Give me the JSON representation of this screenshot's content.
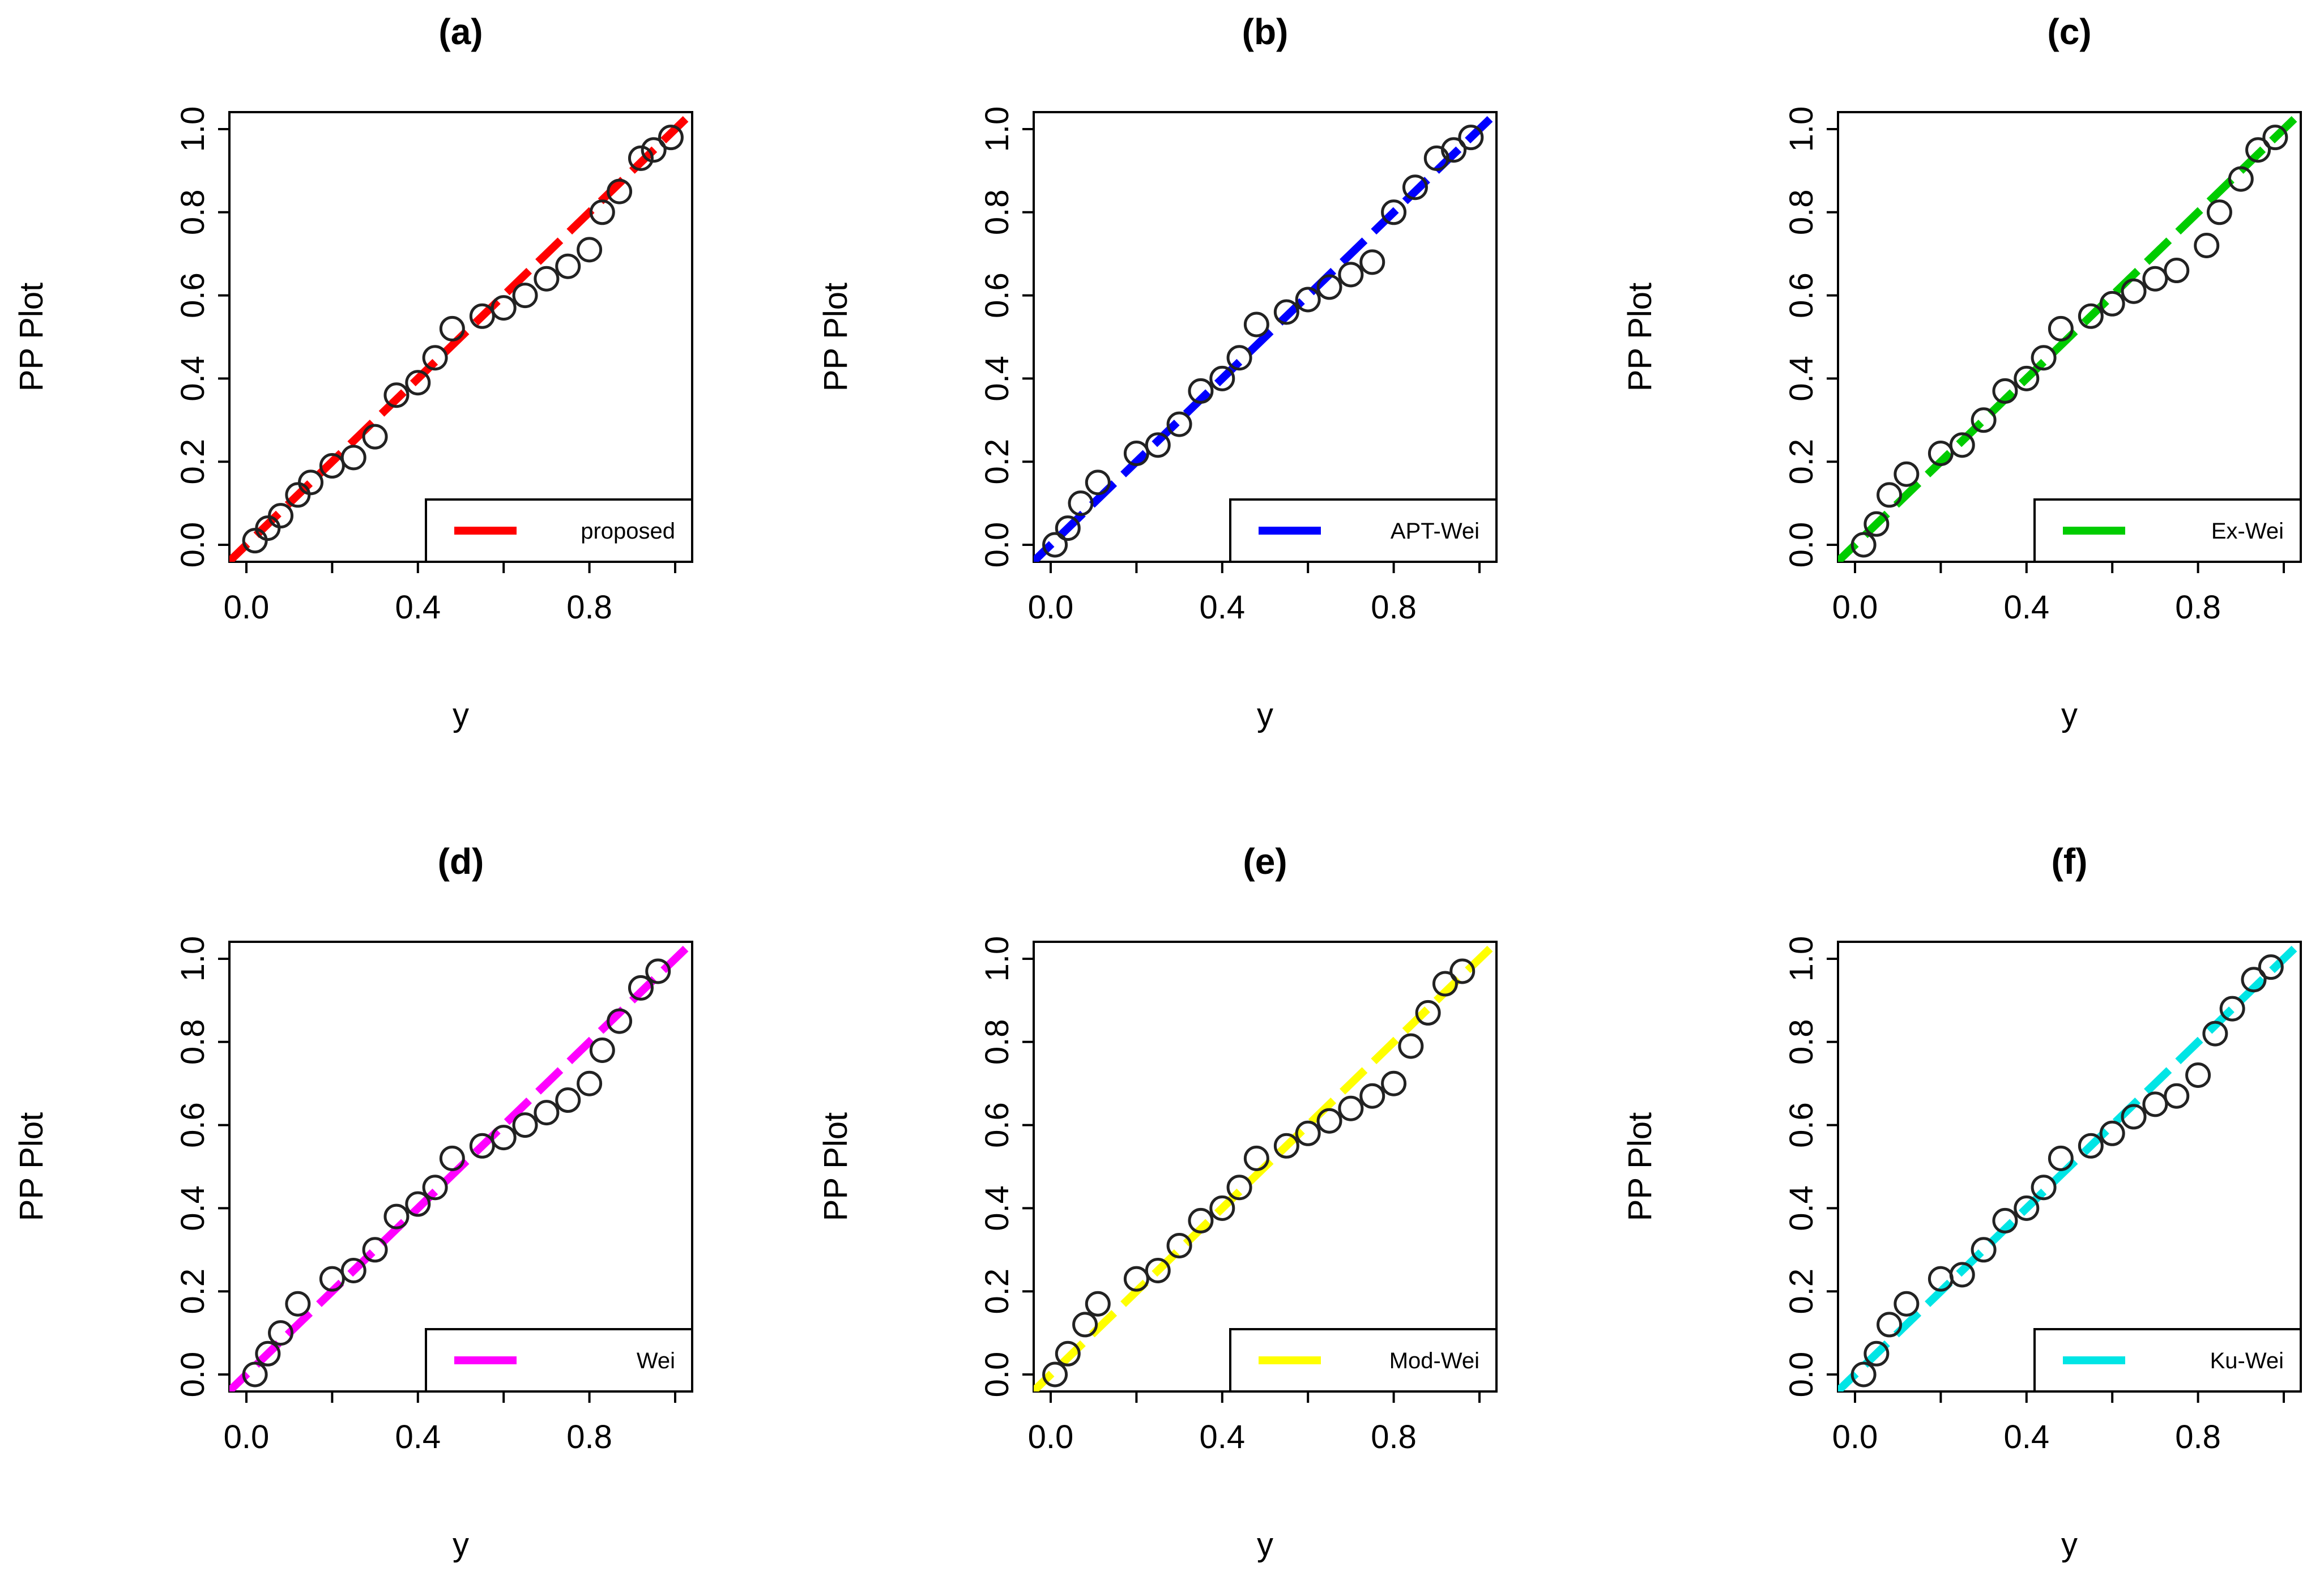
{
  "chart_data": [
    {
      "panel": "(a)",
      "type": "scatter",
      "title": "(a)",
      "xlabel": "y",
      "ylabel": "PP Plot",
      "xlim": [
        0,
        1
      ],
      "ylim": [
        0,
        1
      ],
      "x_ticks": [
        "0.0",
        "0.4",
        "0.8"
      ],
      "y_ticks": [
        "0.0",
        "0.2",
        "0.4",
        "0.6",
        "0.8",
        "1.0"
      ],
      "legend": {
        "label": "proposed",
        "color": "#ff0000",
        "position": "bottom-right"
      },
      "reference_line": {
        "from": [
          0,
          0
        ],
        "to": [
          1,
          1
        ],
        "style": "dashed",
        "color": "#ff0000"
      },
      "points": [
        [
          0.02,
          0.01
        ],
        [
          0.05,
          0.04
        ],
        [
          0.08,
          0.07
        ],
        [
          0.12,
          0.12
        ],
        [
          0.15,
          0.15
        ],
        [
          0.2,
          0.19
        ],
        [
          0.25,
          0.21
        ],
        [
          0.3,
          0.26
        ],
        [
          0.35,
          0.36
        ],
        [
          0.4,
          0.39
        ],
        [
          0.44,
          0.45
        ],
        [
          0.48,
          0.52
        ],
        [
          0.55,
          0.55
        ],
        [
          0.6,
          0.57
        ],
        [
          0.65,
          0.6
        ],
        [
          0.7,
          0.64
        ],
        [
          0.75,
          0.67
        ],
        [
          0.8,
          0.71
        ],
        [
          0.83,
          0.8
        ],
        [
          0.87,
          0.85
        ],
        [
          0.92,
          0.93
        ],
        [
          0.95,
          0.95
        ],
        [
          0.99,
          0.98
        ]
      ]
    },
    {
      "panel": "(b)",
      "type": "scatter",
      "title": "(b)",
      "xlabel": "y",
      "ylabel": "PP Plot",
      "xlim": [
        0,
        1
      ],
      "ylim": [
        0,
        1
      ],
      "x_ticks": [
        "0.0",
        "0.4",
        "0.8"
      ],
      "y_ticks": [
        "0.0",
        "0.2",
        "0.4",
        "0.6",
        "0.8",
        "1.0"
      ],
      "legend": {
        "label": "APT-Wei",
        "color": "#0000ff",
        "position": "bottom-right"
      },
      "reference_line": {
        "from": [
          0,
          0
        ],
        "to": [
          1,
          1
        ],
        "style": "dashed",
        "color": "#0000ff"
      },
      "points": [
        [
          0.01,
          0.0
        ],
        [
          0.04,
          0.04
        ],
        [
          0.07,
          0.1
        ],
        [
          0.11,
          0.15
        ],
        [
          0.2,
          0.22
        ],
        [
          0.25,
          0.24
        ],
        [
          0.3,
          0.29
        ],
        [
          0.35,
          0.37
        ],
        [
          0.4,
          0.4
        ],
        [
          0.44,
          0.45
        ],
        [
          0.48,
          0.53
        ],
        [
          0.55,
          0.56
        ],
        [
          0.6,
          0.59
        ],
        [
          0.65,
          0.62
        ],
        [
          0.7,
          0.65
        ],
        [
          0.75,
          0.68
        ],
        [
          0.8,
          0.8
        ],
        [
          0.85,
          0.86
        ],
        [
          0.9,
          0.93
        ],
        [
          0.94,
          0.95
        ],
        [
          0.98,
          0.98
        ]
      ]
    },
    {
      "panel": "(c)",
      "type": "scatter",
      "title": "(c)",
      "xlabel": "y",
      "ylabel": "PP Plot",
      "xlim": [
        0,
        1
      ],
      "ylim": [
        0,
        1
      ],
      "x_ticks": [
        "0.0",
        "0.4",
        "0.8"
      ],
      "y_ticks": [
        "0.0",
        "0.2",
        "0.4",
        "0.6",
        "0.8",
        "1.0"
      ],
      "legend": {
        "label": "Ex-Wei",
        "color": "#00cc00",
        "position": "bottom-right"
      },
      "reference_line": {
        "from": [
          0,
          0
        ],
        "to": [
          1,
          1
        ],
        "style": "dashed",
        "color": "#00cc00"
      },
      "points": [
        [
          0.02,
          0.0
        ],
        [
          0.05,
          0.05
        ],
        [
          0.08,
          0.12
        ],
        [
          0.12,
          0.17
        ],
        [
          0.2,
          0.22
        ],
        [
          0.25,
          0.24
        ],
        [
          0.3,
          0.3
        ],
        [
          0.35,
          0.37
        ],
        [
          0.4,
          0.4
        ],
        [
          0.44,
          0.45
        ],
        [
          0.48,
          0.52
        ],
        [
          0.55,
          0.55
        ],
        [
          0.6,
          0.58
        ],
        [
          0.65,
          0.61
        ],
        [
          0.7,
          0.64
        ],
        [
          0.75,
          0.66
        ],
        [
          0.82,
          0.72
        ],
        [
          0.85,
          0.8
        ],
        [
          0.9,
          0.88
        ],
        [
          0.94,
          0.95
        ],
        [
          0.98,
          0.98
        ]
      ]
    },
    {
      "panel": "(d)",
      "type": "scatter",
      "title": "(d)",
      "xlabel": "y",
      "ylabel": "PP Plot",
      "xlim": [
        0,
        1
      ],
      "ylim": [
        0,
        1
      ],
      "x_ticks": [
        "0.0",
        "0.4",
        "0.8"
      ],
      "y_ticks": [
        "0.0",
        "0.2",
        "0.4",
        "0.6",
        "0.8",
        "1.0"
      ],
      "legend": {
        "label": "Wei",
        "color": "#ff00ff",
        "position": "bottom-right"
      },
      "reference_line": {
        "from": [
          0,
          0
        ],
        "to": [
          1,
          1
        ],
        "style": "dashed",
        "color": "#ff00ff"
      },
      "points": [
        [
          0.02,
          0.0
        ],
        [
          0.05,
          0.05
        ],
        [
          0.08,
          0.1
        ],
        [
          0.12,
          0.17
        ],
        [
          0.2,
          0.23
        ],
        [
          0.25,
          0.25
        ],
        [
          0.3,
          0.3
        ],
        [
          0.35,
          0.38
        ],
        [
          0.4,
          0.41
        ],
        [
          0.44,
          0.45
        ],
        [
          0.48,
          0.52
        ],
        [
          0.55,
          0.55
        ],
        [
          0.6,
          0.57
        ],
        [
          0.65,
          0.6
        ],
        [
          0.7,
          0.63
        ],
        [
          0.75,
          0.66
        ],
        [
          0.8,
          0.7
        ],
        [
          0.83,
          0.78
        ],
        [
          0.87,
          0.85
        ],
        [
          0.92,
          0.93
        ],
        [
          0.96,
          0.97
        ]
      ]
    },
    {
      "panel": "(e)",
      "type": "scatter",
      "title": "(e)",
      "xlabel": "y",
      "ylabel": "PP Plot",
      "xlim": [
        0,
        1
      ],
      "ylim": [
        0,
        1
      ],
      "x_ticks": [
        "0.0",
        "0.4",
        "0.8"
      ],
      "y_ticks": [
        "0.0",
        "0.2",
        "0.4",
        "0.6",
        "0.8",
        "1.0"
      ],
      "legend": {
        "label": "Mod-Wei",
        "color": "#ffff00",
        "position": "bottom-right"
      },
      "reference_line": {
        "from": [
          0,
          0
        ],
        "to": [
          1,
          1
        ],
        "style": "dashed",
        "color": "#ffff00"
      },
      "points": [
        [
          0.01,
          0.0
        ],
        [
          0.04,
          0.05
        ],
        [
          0.08,
          0.12
        ],
        [
          0.11,
          0.17
        ],
        [
          0.2,
          0.23
        ],
        [
          0.25,
          0.25
        ],
        [
          0.3,
          0.31
        ],
        [
          0.35,
          0.37
        ],
        [
          0.4,
          0.4
        ],
        [
          0.44,
          0.45
        ],
        [
          0.48,
          0.52
        ],
        [
          0.55,
          0.55
        ],
        [
          0.6,
          0.58
        ],
        [
          0.65,
          0.61
        ],
        [
          0.7,
          0.64
        ],
        [
          0.75,
          0.67
        ],
        [
          0.8,
          0.7
        ],
        [
          0.84,
          0.79
        ],
        [
          0.88,
          0.87
        ],
        [
          0.92,
          0.94
        ],
        [
          0.96,
          0.97
        ]
      ]
    },
    {
      "panel": "(f)",
      "type": "scatter",
      "title": "(f)",
      "xlabel": "y",
      "ylabel": "PP Plot",
      "xlim": [
        0,
        1
      ],
      "ylim": [
        0,
        1
      ],
      "x_ticks": [
        "0.0",
        "0.4",
        "0.8"
      ],
      "y_ticks": [
        "0.0",
        "0.2",
        "0.4",
        "0.6",
        "0.8",
        "1.0"
      ],
      "legend": {
        "label": "Ku-Wei",
        "color": "#00e5e5",
        "position": "bottom-right"
      },
      "reference_line": {
        "from": [
          0,
          0
        ],
        "to": [
          1,
          1
        ],
        "style": "dashed",
        "color": "#00e5e5"
      },
      "points": [
        [
          0.02,
          0.0
        ],
        [
          0.05,
          0.05
        ],
        [
          0.08,
          0.12
        ],
        [
          0.12,
          0.17
        ],
        [
          0.2,
          0.23
        ],
        [
          0.25,
          0.24
        ],
        [
          0.3,
          0.3
        ],
        [
          0.35,
          0.37
        ],
        [
          0.4,
          0.4
        ],
        [
          0.44,
          0.45
        ],
        [
          0.48,
          0.52
        ],
        [
          0.55,
          0.55
        ],
        [
          0.6,
          0.58
        ],
        [
          0.65,
          0.62
        ],
        [
          0.7,
          0.65
        ],
        [
          0.75,
          0.67
        ],
        [
          0.8,
          0.72
        ],
        [
          0.84,
          0.82
        ],
        [
          0.88,
          0.88
        ],
        [
          0.93,
          0.95
        ],
        [
          0.97,
          0.98
        ]
      ]
    }
  ]
}
